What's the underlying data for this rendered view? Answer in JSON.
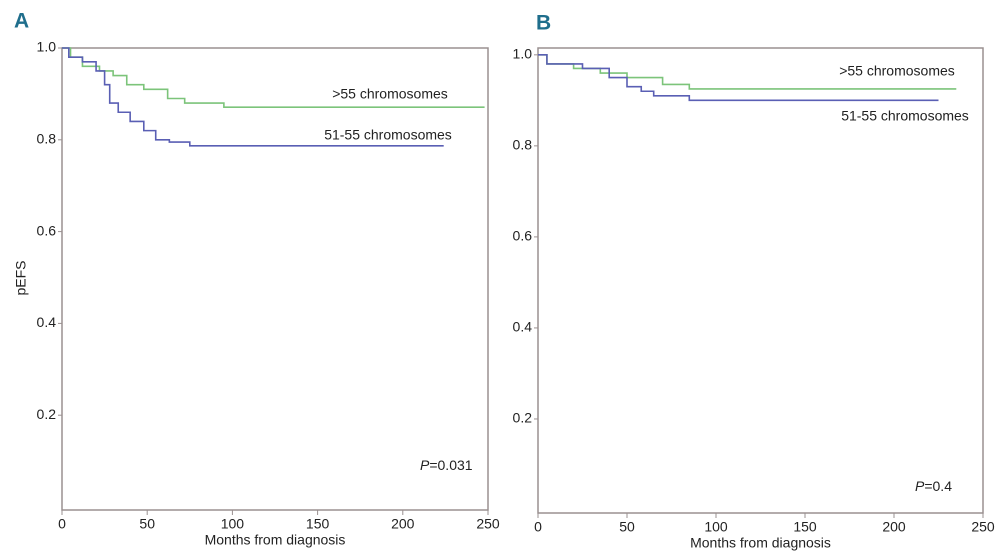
{
  "chart_data": [
    {
      "type": "line",
      "panel": "A",
      "xlabel": "Months from diagnosis",
      "ylabel": "pEFS",
      "p_label": "P",
      "p_value": "=0.031",
      "xlim": [
        0,
        250
      ],
      "xticks": [
        0,
        50,
        100,
        150,
        200,
        250
      ],
      "ylim": [
        0,
        1
      ],
      "yticks": [
        0.2,
        0.4,
        0.6,
        0.8,
        {
          "value": 1,
          "label": "1.0"
        }
      ],
      "series": [
        {
          "name": ">55 chromosomes",
          "color": "#7cc47a",
          "x": [
            0,
            5,
            5,
            12,
            12,
            22,
            22,
            30,
            30,
            38,
            38,
            48,
            48,
            62,
            62,
            72,
            72,
            95,
            95,
            248
          ],
          "values": [
            1,
            1,
            0.98,
            0.98,
            0.96,
            0.96,
            0.95,
            0.95,
            0.94,
            0.94,
            0.92,
            0.92,
            0.91,
            0.91,
            0.89,
            0.89,
            0.88,
            0.88,
            0.871,
            0.871
          ]
        },
        {
          "name": "51-55 chromosomes",
          "color": "#5a5fb4",
          "x": [
            0,
            4,
            4,
            12,
            12,
            20,
            20,
            25,
            25,
            28,
            28,
            33,
            33,
            40,
            40,
            48,
            48,
            55,
            55,
            63,
            63,
            75,
            75,
            224
          ],
          "values": [
            1,
            1,
            0.98,
            0.98,
            0.97,
            0.97,
            0.95,
            0.95,
            0.92,
            0.92,
            0.88,
            0.88,
            0.86,
            0.86,
            0.84,
            0.84,
            0.82,
            0.82,
            0.8,
            0.8,
            0.795,
            0.795,
            0.787,
            0.787
          ]
        }
      ]
    },
    {
      "type": "line",
      "panel": "B",
      "xlabel": "Months from diagnosis",
      "p_label": "P",
      "p_value": "=0.4",
      "xlim": [
        0,
        250
      ],
      "xticks": [
        0,
        50,
        100,
        150,
        200,
        250
      ],
      "ylim": [
        0,
        1.015
      ],
      "yticks": [
        0.2,
        0.4,
        0.6,
        0.8,
        {
          "value": 1,
          "label": "1.0"
        }
      ],
      "series": [
        {
          "name": ">55 chromosomes",
          "color": "#7cc47a",
          "x": [
            0,
            5,
            5,
            20,
            20,
            35,
            35,
            50,
            50,
            70,
            70,
            85,
            85,
            235
          ],
          "values": [
            1,
            1,
            0.98,
            0.98,
            0.97,
            0.97,
            0.96,
            0.96,
            0.95,
            0.95,
            0.935,
            0.935,
            0.925,
            0.925
          ]
        },
        {
          "name": "51-55 chromosomes",
          "color": "#5a5fb4",
          "x": [
            0,
            5,
            5,
            25,
            25,
            40,
            40,
            50,
            50,
            58,
            58,
            65,
            65,
            85,
            85,
            225
          ],
          "values": [
            1,
            1,
            0.98,
            0.98,
            0.97,
            0.97,
            0.95,
            0.95,
            0.93,
            0.93,
            0.92,
            0.92,
            0.91,
            0.91,
            0.9,
            0.9
          ]
        }
      ]
    }
  ]
}
